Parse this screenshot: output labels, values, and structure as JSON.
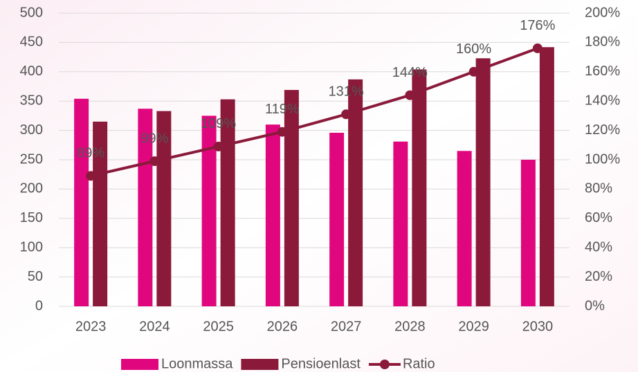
{
  "chart_data": {
    "type": "bar_line",
    "categories": [
      "2023",
      "2024",
      "2025",
      "2026",
      "2027",
      "2028",
      "2029",
      "2030"
    ],
    "series": [
      {
        "name": "Loonmassa",
        "color": "#e0077e",
        "type": "bar",
        "values": [
          354,
          337,
          325,
          310,
          296,
          281,
          265,
          250
        ]
      },
      {
        "name": "Pensioenlast",
        "color": "#8b1a3a",
        "type": "bar",
        "values": [
          315,
          333,
          353,
          369,
          387,
          404,
          423,
          442
        ]
      },
      {
        "name": "Ratio",
        "color": "#8b1a3a",
        "type": "line",
        "axis": "y2",
        "values": [
          89,
          99,
          109,
          119,
          131,
          144,
          160,
          176
        ],
        "value_labels": [
          "89%",
          "99%",
          "109%",
          "119%",
          "131%",
          "144%",
          "160%",
          "176%"
        ]
      }
    ],
    "ylim": [
      0,
      500
    ],
    "yticks": [
      0,
      50,
      100,
      150,
      200,
      250,
      300,
      350,
      400,
      450,
      500
    ],
    "y2lim": [
      0,
      200
    ],
    "y2ticks": [
      {
        "value": 0,
        "label": "0%"
      },
      {
        "value": 20,
        "label": "20%"
      },
      {
        "value": 40,
        "label": "40%"
      },
      {
        "value": 60,
        "label": "60%"
      },
      {
        "value": 80,
        "label": "80%"
      },
      {
        "value": 100,
        "label": "100%"
      },
      {
        "value": 120,
        "label": "120%"
      },
      {
        "value": 140,
        "label": "140%"
      },
      {
        "value": 160,
        "label": "160%"
      },
      {
        "value": 180,
        "label": "180%"
      },
      {
        "value": 200,
        "label": "200%"
      }
    ],
    "grid": true,
    "legend": "bottom"
  }
}
